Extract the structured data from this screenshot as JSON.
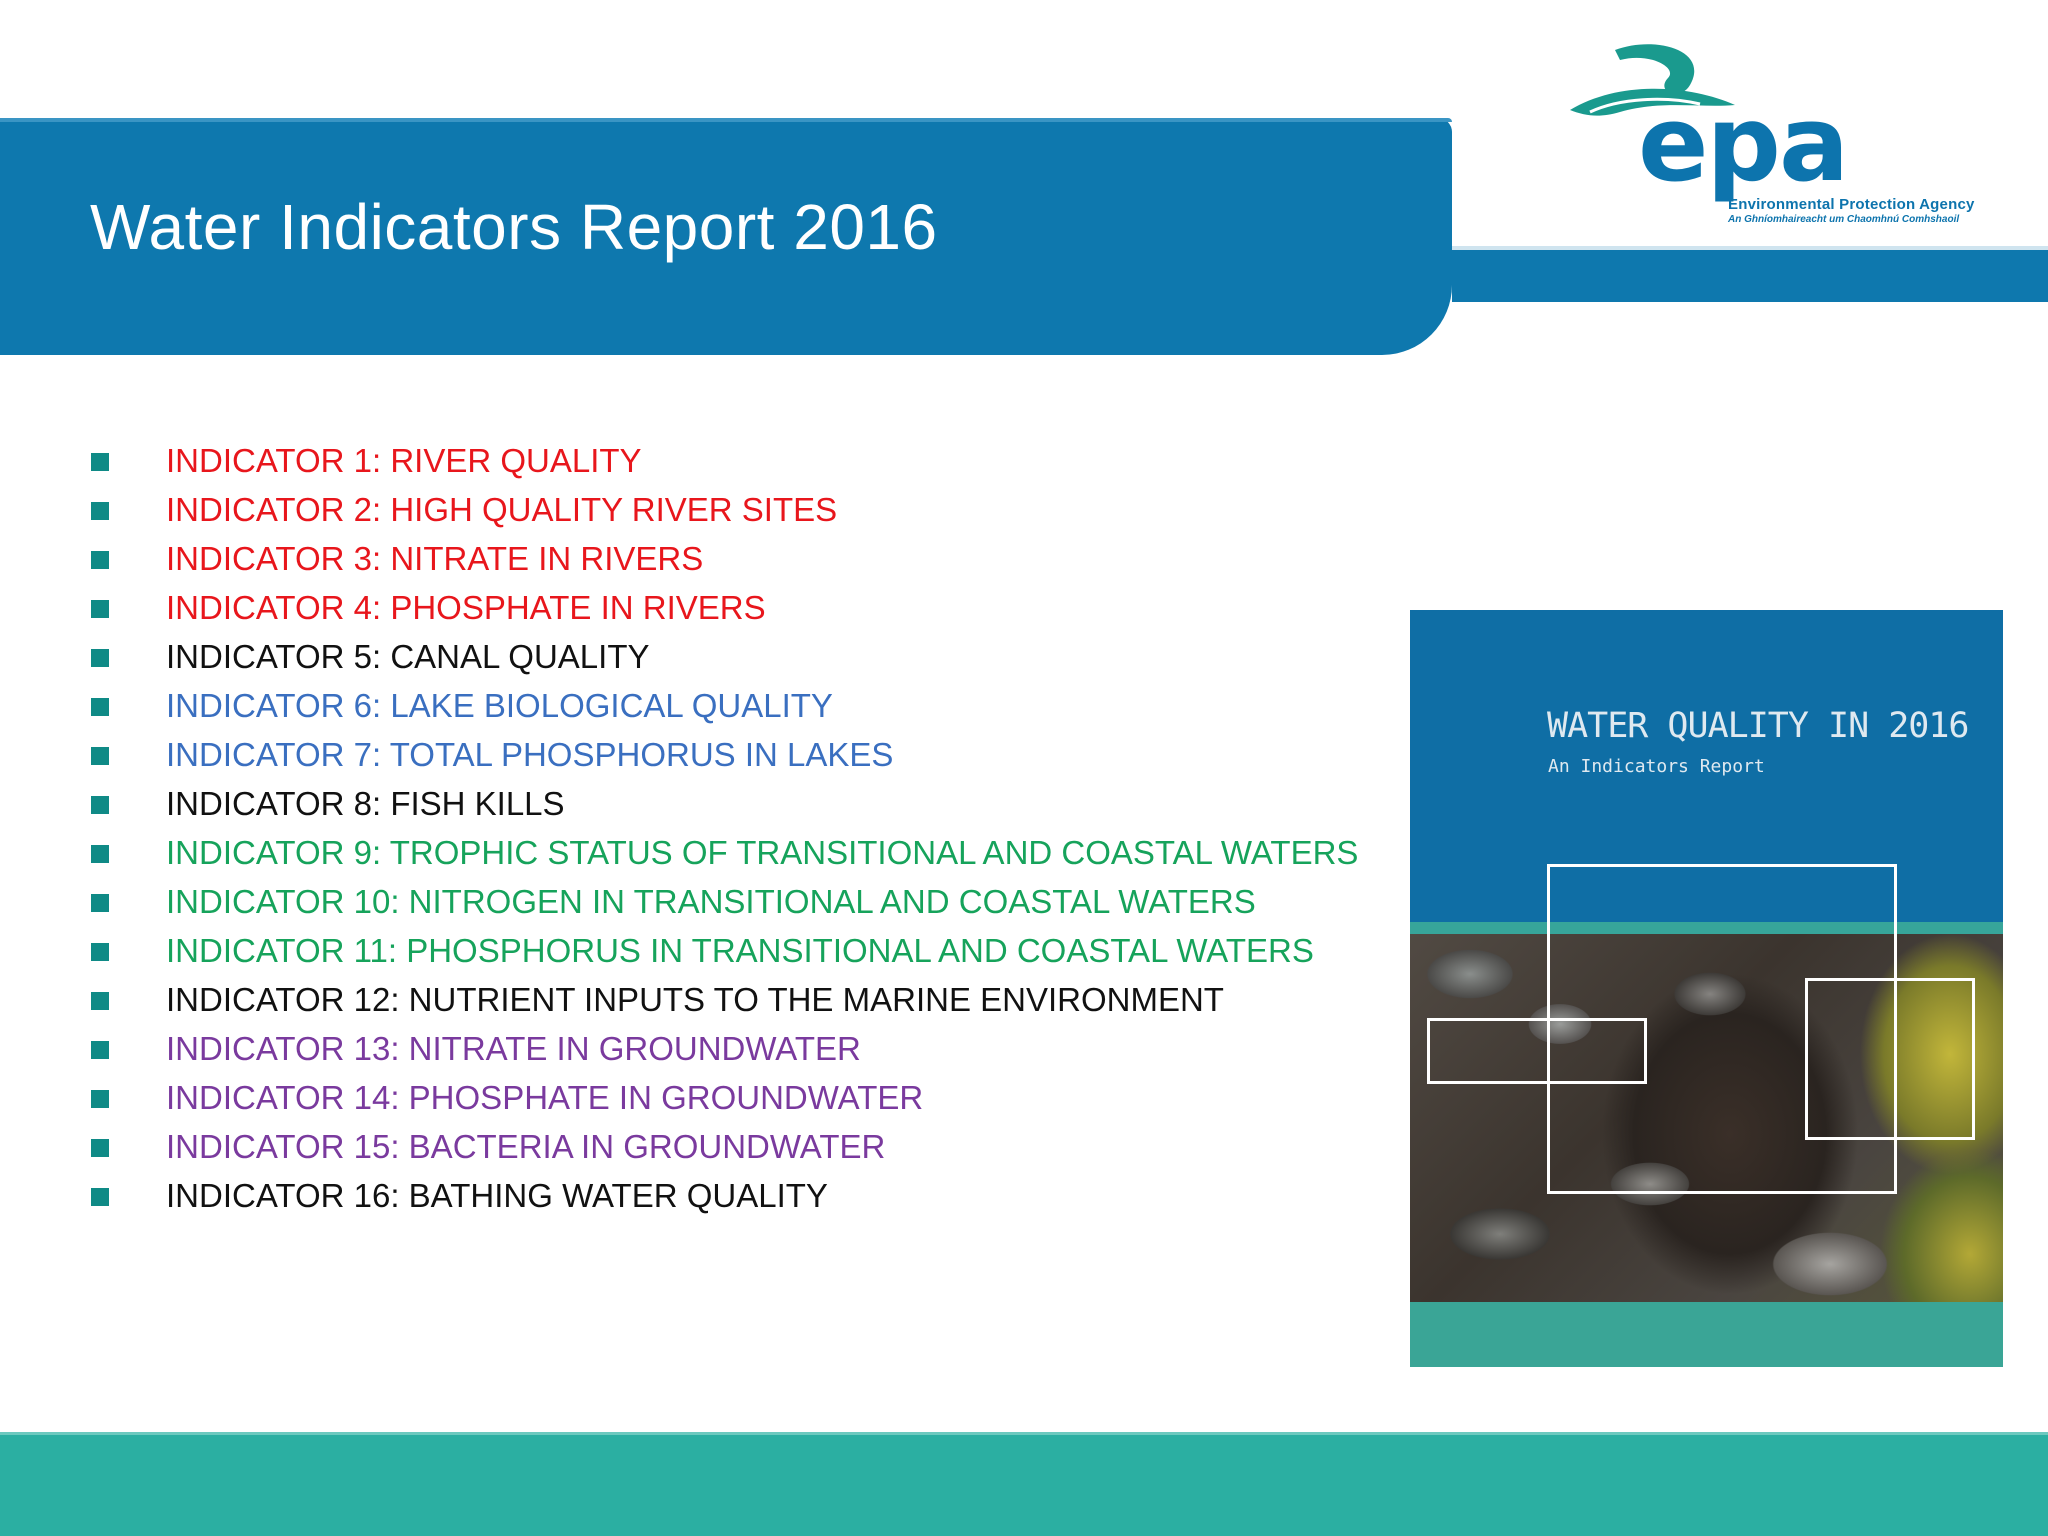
{
  "slide": {
    "title": "Water Indicators Report 2016"
  },
  "logo": {
    "wordmark": "epa",
    "name_en": "Environmental Protection Agency",
    "name_ga": "An Ghníomhaireacht um Chaomhnú Comhshaoil",
    "color": "#0d74ad",
    "accent_color": "#1a9a8e"
  },
  "indicators": [
    {
      "label": "INDICATOR 1: RIVER QUALITY",
      "color": "#e8161c"
    },
    {
      "label": "INDICATOR 2: HIGH QUALITY RIVER SITES",
      "color": "#e8161c"
    },
    {
      "label": "INDICATOR 3: NITRATE IN RIVERS",
      "color": "#e8161c"
    },
    {
      "label": "INDICATOR 4: PHOSPHATE IN RIVERS",
      "color": "#e8161c"
    },
    {
      "label": "INDICATOR 5: CANAL QUALITY",
      "color": "#111111"
    },
    {
      "label": "INDICATOR 6: LAKE BIOLOGICAL QUALITY",
      "color": "#3a6fc0"
    },
    {
      "label": "INDICATOR 7: TOTAL PHOSPHORUS IN LAKES",
      "color": "#3a6fc0"
    },
    {
      "label": "INDICATOR 8: FISH KILLS",
      "color": "#111111"
    },
    {
      "label": "INDICATOR 9: TROPHIC STATUS OF TRANSITIONAL AND COASTAL WATERS",
      "color": "#16a35b"
    },
    {
      "label": "INDICATOR 10: NITROGEN IN TRANSITIONAL AND COASTAL WATERS",
      "color": "#16a35b"
    },
    {
      "label": "INDICATOR 11: PHOSPHORUS IN TRANSITIONAL AND COASTAL WATERS",
      "color": "#16a35b"
    },
    {
      "label": "INDICATOR 12: NUTRIENT INPUTS TO THE MARINE ENVIRONMENT",
      "color": "#111111"
    },
    {
      "label": "INDICATOR 13: NITRATE IN GROUNDWATER",
      "color": "#7a3a9e"
    },
    {
      "label": "INDICATOR 14: PHOSPHATE IN GROUNDWATER",
      "color": "#7a3a9e"
    },
    {
      "label": "INDICATOR 15: BACTERIA IN GROUNDWATER",
      "color": "#7a3a9e"
    },
    {
      "label": "INDICATOR 16: BATHING WATER QUALITY",
      "color": "#111111"
    }
  ],
  "bullet_color": "#0f8a86",
  "cover": {
    "title": "WATER QUALITY IN 2016",
    "subtitle": "An Indicators Report",
    "background_color": "#0f6ea5",
    "stripe_color": "#37a59a"
  },
  "theme": {
    "header_blue": "#0e78ae",
    "footer_teal": "#2bafa2"
  }
}
